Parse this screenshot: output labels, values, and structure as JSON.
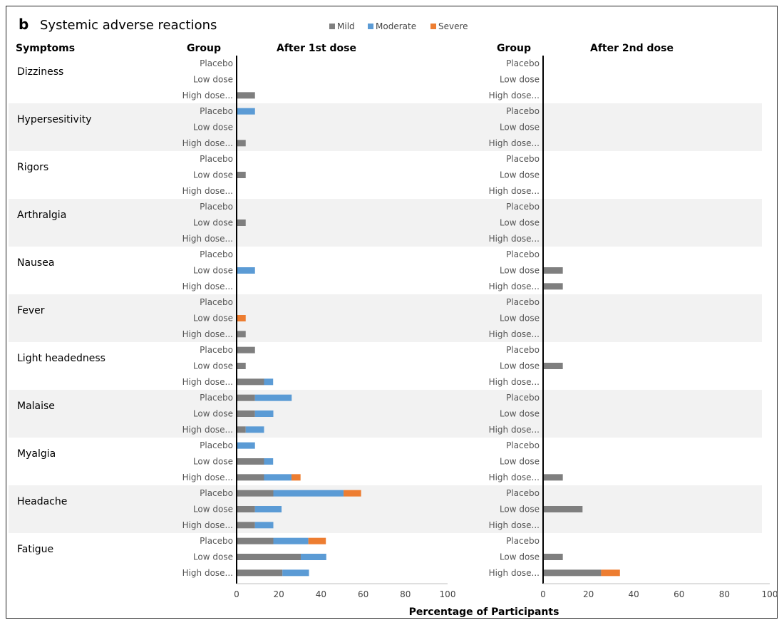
{
  "panel_letter": "b",
  "title": "Systemic adverse reactions",
  "legend": [
    {
      "label": "Mild",
      "color": "#7f7f7f"
    },
    {
      "label": "Moderate",
      "color": "#5b9bd5"
    },
    {
      "label": "Severe",
      "color": "#ed7d31"
    }
  ],
  "headers": {
    "symptoms": "Symptoms",
    "group_left": "Group",
    "dose1": "After 1st dose",
    "group_right": "Group",
    "dose2": "After 2nd dose"
  },
  "xlabel": "Percentage of Participants",
  "chart_data": {
    "type": "bar",
    "stacked": true,
    "orientation": "horizontal",
    "title": "Systemic adverse reactions",
    "xlabel": "Percentage of Participants",
    "xlim": [
      0,
      100
    ],
    "xticks": [
      "0",
      "20",
      "40",
      "60",
      "80",
      "100"
    ],
    "series_names": [
      "Mild",
      "Moderate",
      "Severe"
    ],
    "group_labels": [
      "Placebo",
      "Low dose",
      "High dose..."
    ],
    "symptoms": [
      {
        "name": "Dizziness",
        "shaded": false,
        "dose1": [
          [
            0,
            0,
            0
          ],
          [
            0,
            0,
            0
          ],
          [
            8.7,
            0,
            0
          ]
        ],
        "dose2": [
          [
            0,
            0,
            0
          ],
          [
            0,
            0,
            0
          ],
          [
            0,
            0,
            0
          ]
        ]
      },
      {
        "name": "Hypersesitivity",
        "shaded": true,
        "dose1": [
          [
            0,
            8.7,
            0
          ],
          [
            0,
            0,
            0
          ],
          [
            4.3,
            0,
            0
          ]
        ],
        "dose2": [
          [
            0,
            0,
            0
          ],
          [
            0,
            0,
            0
          ],
          [
            0,
            0,
            0
          ]
        ]
      },
      {
        "name": "Rigors",
        "shaded": false,
        "dose1": [
          [
            0,
            0,
            0
          ],
          [
            4.3,
            0,
            0
          ],
          [
            0,
            0,
            0
          ]
        ],
        "dose2": [
          [
            0,
            0,
            0
          ],
          [
            0,
            0,
            0
          ],
          [
            0,
            0,
            0
          ]
        ]
      },
      {
        "name": "Arthralgia",
        "shaded": true,
        "dose1": [
          [
            0,
            0,
            0
          ],
          [
            4.3,
            0,
            0
          ],
          [
            0,
            0,
            0
          ]
        ],
        "dose2": [
          [
            0,
            0,
            0
          ],
          [
            0,
            0,
            0
          ],
          [
            0,
            0,
            0
          ]
        ]
      },
      {
        "name": "Nausea",
        "shaded": false,
        "dose1": [
          [
            0,
            0,
            0
          ],
          [
            0,
            8.7,
            0
          ],
          [
            0,
            0,
            0
          ]
        ],
        "dose2": [
          [
            0,
            0,
            0
          ],
          [
            8.7,
            0,
            0
          ],
          [
            8.7,
            0,
            0
          ]
        ]
      },
      {
        "name": "Fever",
        "shaded": true,
        "dose1": [
          [
            0,
            0,
            0
          ],
          [
            0,
            0,
            4.3
          ],
          [
            4.3,
            0,
            0
          ]
        ],
        "dose2": [
          [
            0,
            0,
            0
          ],
          [
            0,
            0,
            0
          ],
          [
            0,
            0,
            0
          ]
        ]
      },
      {
        "name": "Light headedness",
        "shaded": false,
        "dose1": [
          [
            8.7,
            0,
            0
          ],
          [
            4.3,
            0,
            0
          ],
          [
            13,
            4.3,
            0
          ]
        ],
        "dose2": [
          [
            0,
            0,
            0
          ],
          [
            8.7,
            0,
            0
          ],
          [
            0,
            0,
            0
          ]
        ]
      },
      {
        "name": "Malaise",
        "shaded": true,
        "dose1": [
          [
            8.7,
            17.4,
            0
          ],
          [
            8.7,
            8.7,
            0
          ],
          [
            4.3,
            8.7,
            0
          ]
        ],
        "dose2": [
          [
            0,
            0,
            0
          ],
          [
            0,
            0,
            0
          ],
          [
            0,
            0,
            0
          ]
        ]
      },
      {
        "name": "Myalgia",
        "shaded": false,
        "dose1": [
          [
            0,
            8.7,
            0
          ],
          [
            13,
            4.3,
            0
          ],
          [
            13,
            13,
            4.3
          ]
        ],
        "dose2": [
          [
            0,
            0,
            0
          ],
          [
            0,
            0,
            0
          ],
          [
            8.7,
            0,
            0
          ]
        ]
      },
      {
        "name": "Headache",
        "shaded": true,
        "dose1": [
          [
            17.4,
            33.3,
            8.3
          ],
          [
            8.7,
            12.6,
            0
          ],
          [
            8.7,
            8.7,
            0
          ]
        ],
        "dose2": [
          [
            0,
            0,
            0
          ],
          [
            17.4,
            0,
            0
          ],
          [
            0,
            0,
            0
          ]
        ]
      },
      {
        "name": "Fatigue",
        "shaded": false,
        "dose1": [
          [
            17.4,
            16.6,
            8.3
          ],
          [
            30.4,
            12.1,
            0
          ],
          [
            21.7,
            12.6,
            0
          ]
        ],
        "dose2": [
          [
            0,
            0,
            0
          ],
          [
            8.7,
            0,
            0
          ],
          [
            25.6,
            0,
            8.3
          ]
        ]
      }
    ]
  }
}
